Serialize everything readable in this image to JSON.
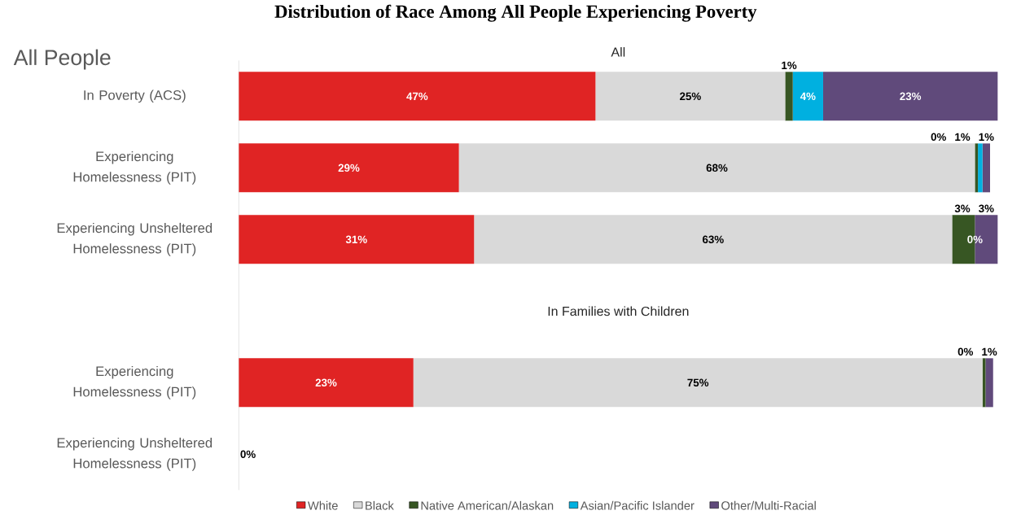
{
  "chart_data": {
    "type": "bar",
    "orientation": "horizontal",
    "stacked": true,
    "title": "Distribution of Race Among All People Experiencing Poverty",
    "subtitle": "All People",
    "categories": [
      "In Poverty (ACS)",
      "Experiencing Homelessness (PIT)",
      "Experiencing Unsheltered Homelessness (PIT)",
      null,
      "Experiencing Homelessness (PIT)",
      "Experiencing Unsheltered Homelessness (PIT)"
    ],
    "series": [
      {
        "name": "White",
        "color": "#e02424",
        "values": [
          47,
          29,
          31,
          null,
          23,
          0
        ],
        "value_labels": [
          "47%",
          "29%",
          "31%",
          null,
          "23%",
          "0%"
        ]
      },
      {
        "name": "Black",
        "color": "#d9d9d9",
        "values": [
          25,
          68,
          63,
          null,
          75,
          0
        ],
        "value_labels": [
          "25%",
          "68%",
          "63%",
          null,
          "75%",
          null
        ]
      },
      {
        "name": "Native American/Alaskan",
        "color": "#375623",
        "values": [
          1,
          0.4,
          3,
          null,
          0.4,
          0
        ],
        "value_labels": [
          "1%",
          "0%",
          "3%",
          null,
          "0%",
          null
        ]
      },
      {
        "name": "Asian/Pacific Islander",
        "color": "#00b0e0",
        "values": [
          4,
          0.6,
          0,
          null,
          0,
          0
        ],
        "value_labels": [
          "4%",
          "1%",
          "0%",
          null,
          null,
          null
        ]
      },
      {
        "name": "Other/Multi-Racial",
        "color": "#604a7b",
        "values": [
          23,
          1,
          3,
          null,
          1,
          0
        ],
        "value_labels": [
          "23%",
          "1%",
          "3%",
          null,
          "1%",
          null
        ]
      }
    ],
    "annotations": [
      "All",
      "In Families with Children"
    ],
    "legend": "bottom"
  }
}
